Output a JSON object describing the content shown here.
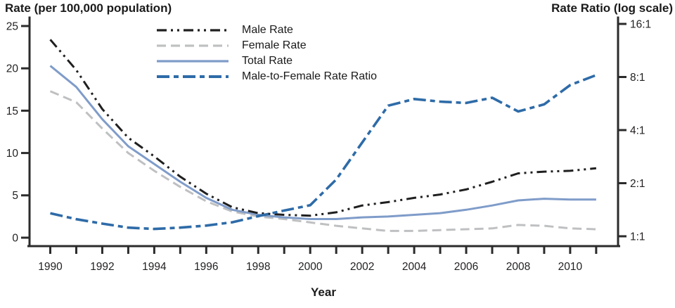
{
  "figure_name": "Rates by sex and male-to-female rate ratio line chart",
  "colors": {
    "background": "#ffffff",
    "axis": "#2b2b2b",
    "text": "#1a1a1a",
    "male_line": "#1f1f1f",
    "female_line": "#bfc0c2",
    "total_line": "#7f9cc9",
    "ratio_line": "#2e6ba8"
  },
  "chart_data": {
    "type": "line",
    "title": "",
    "left_axis": {
      "title": "Rate (per 100,000 population)",
      "ticks": [
        0,
        5,
        10,
        15,
        20,
        25
      ],
      "range": [
        0,
        25
      ],
      "scale": "linear"
    },
    "right_axis": {
      "title": "Rate Ratio (log scale)",
      "scale": "log2",
      "ticks": [
        {
          "value": 1,
          "label": "1:1"
        },
        {
          "value": 2,
          "label": "2:1"
        },
        {
          "value": 4,
          "label": "4:1"
        },
        {
          "value": 8,
          "label": "8:1"
        },
        {
          "value": 16,
          "label": "16:1"
        }
      ],
      "range": [
        1,
        16
      ]
    },
    "x_axis": {
      "title": "Year",
      "ticks": [
        1990,
        1991,
        1992,
        1993,
        1994,
        1995,
        1996,
        1997,
        1998,
        1999,
        2000,
        2001,
        2002,
        2003,
        2004,
        2005,
        2006,
        2007,
        2008,
        2009,
        2010,
        2011
      ],
      "labeled_ticks": [
        1990,
        1992,
        1994,
        1996,
        1998,
        2000,
        2002,
        2004,
        2006,
        2008,
        2010
      ]
    },
    "grid": "off",
    "legend_position": "inside-top-left",
    "x": [
      1990,
      1991,
      1992,
      1993,
      1994,
      1995,
      1996,
      1997,
      1998,
      1999,
      2000,
      2001,
      2002,
      2003,
      2004,
      2005,
      2006,
      2007,
      2008,
      2009,
      2010,
      2011
    ],
    "series": [
      {
        "name": "Male Rate",
        "axis": "left",
        "color": "#1f1f1f",
        "dash": "dash-dot-dot",
        "values": [
          23.4,
          19.8,
          15.2,
          11.8,
          9.6,
          7.2,
          5.2,
          3.6,
          2.9,
          2.7,
          2.6,
          3.0,
          3.8,
          4.2,
          4.7,
          5.1,
          5.7,
          6.6,
          7.6,
          7.8,
          7.9,
          8.2
        ]
      },
      {
        "name": "Female Rate",
        "axis": "left",
        "color": "#bfc0c2",
        "dash": "dashed",
        "values": [
          17.3,
          16.0,
          12.9,
          10.0,
          7.9,
          6.0,
          4.3,
          3.1,
          2.5,
          2.2,
          1.8,
          1.4,
          1.1,
          0.8,
          0.8,
          0.9,
          1.0,
          1.1,
          1.5,
          1.4,
          1.1,
          1.0
        ]
      },
      {
        "name": "Total Rate",
        "axis": "left",
        "color": "#7f9cc9",
        "dash": "solid",
        "values": [
          20.3,
          17.8,
          14.0,
          10.8,
          8.7,
          6.6,
          4.7,
          3.3,
          2.7,
          2.4,
          2.2,
          2.2,
          2.4,
          2.5,
          2.7,
          2.9,
          3.3,
          3.8,
          4.4,
          4.6,
          4.5,
          4.5
        ]
      },
      {
        "name": "Male-to-Female Rate Ratio",
        "axis": "right",
        "color": "#2e6ba8",
        "dash": "long-short-dash",
        "values": [
          1.35,
          1.25,
          1.18,
          1.12,
          1.1,
          1.12,
          1.15,
          1.2,
          1.3,
          1.4,
          1.5,
          2.1,
          3.4,
          5.5,
          6.0,
          5.8,
          5.7,
          6.1,
          5.1,
          5.6,
          7.2,
          8.2
        ]
      }
    ]
  }
}
